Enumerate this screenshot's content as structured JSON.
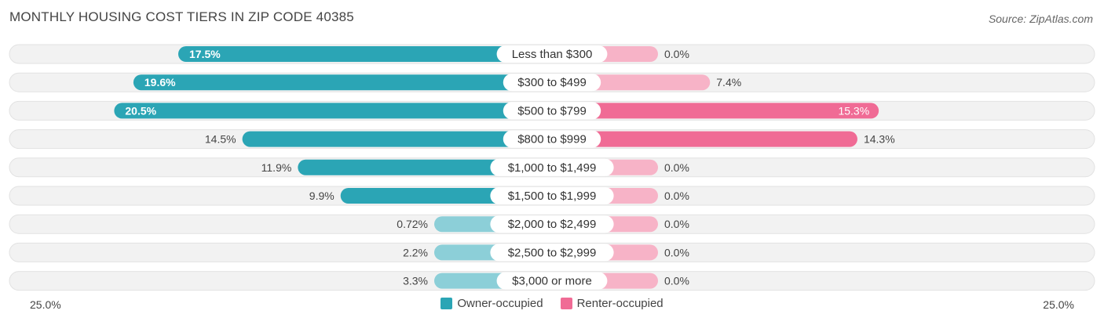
{
  "title": "MONTHLY HOUSING COST TIERS IN ZIP CODE 40385",
  "source": "Source: ZipAtlas.com",
  "colors": {
    "owner": "#2ba5b5",
    "owner_light": "#8ccfd8",
    "renter": "#f06b95",
    "renter_light": "#f7b3c7",
    "row_bg": "#f2f2f2"
  },
  "axis": {
    "left_label": "25.0%",
    "right_label": "25.0%"
  },
  "legend": {
    "owner_label": "Owner-occupied",
    "renter_label": "Renter-occupied"
  },
  "chart_data": {
    "type": "bar",
    "orientation": "diverging-horizontal",
    "title": "MONTHLY HOUSING COST TIERS IN ZIP CODE 40385",
    "xlim": [
      -25,
      25
    ],
    "categories": [
      "Less than $300",
      "$300 to $499",
      "$500 to $799",
      "$800 to $999",
      "$1,000 to $1,499",
      "$1,500 to $1,999",
      "$2,000 to $2,499",
      "$2,500 to $2,999",
      "$3,000 or more"
    ],
    "series": [
      {
        "name": "Owner-occupied",
        "values": [
          17.5,
          19.6,
          20.5,
          14.5,
          11.9,
          9.9,
          0.72,
          2.2,
          3.3
        ],
        "labels": [
          "17.5%",
          "19.6%",
          "20.5%",
          "14.5%",
          "11.9%",
          "9.9%",
          "0.72%",
          "2.2%",
          "3.3%"
        ]
      },
      {
        "name": "Renter-occupied",
        "values": [
          0.0,
          7.4,
          15.3,
          14.3,
          0.0,
          0.0,
          0.0,
          0.0,
          0.0
        ],
        "labels": [
          "0.0%",
          "7.4%",
          "15.3%",
          "14.3%",
          "0.0%",
          "0.0%",
          "0.0%",
          "0.0%",
          "0.0%"
        ]
      }
    ],
    "legend_position": "bottom-center"
  }
}
